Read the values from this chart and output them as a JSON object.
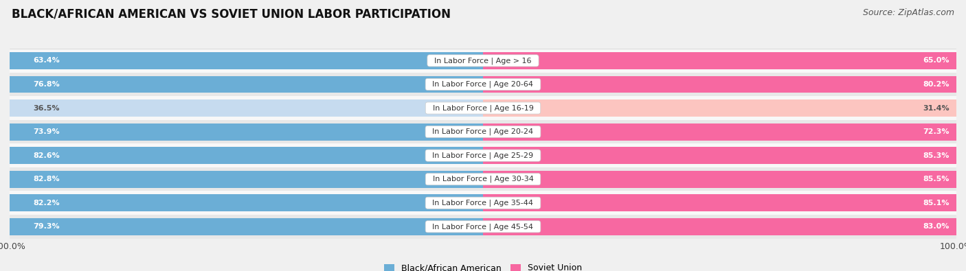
{
  "title": "BLACK/AFRICAN AMERICAN VS SOVIET UNION LABOR PARTICIPATION",
  "source": "Source: ZipAtlas.com",
  "categories": [
    "In Labor Force | Age > 16",
    "In Labor Force | Age 20-64",
    "In Labor Force | Age 16-19",
    "In Labor Force | Age 20-24",
    "In Labor Force | Age 25-29",
    "In Labor Force | Age 30-34",
    "In Labor Force | Age 35-44",
    "In Labor Force | Age 45-54"
  ],
  "left_values": [
    63.4,
    76.8,
    36.5,
    73.9,
    82.6,
    82.8,
    82.2,
    79.3
  ],
  "right_values": [
    65.0,
    80.2,
    31.4,
    72.3,
    85.3,
    85.5,
    85.1,
    83.0
  ],
  "left_label": "Black/African American",
  "right_label": "Soviet Union",
  "left_color_full": "#6baed6",
  "left_color_light": "#c6dbef",
  "right_color_full": "#f768a1",
  "right_color_light": "#fcc5c0",
  "bar_height": 0.72,
  "xlim": 100.0,
  "bg_color": "#f0f0f0",
  "row_bg_light": "#f8f8f8",
  "row_bg_dark": "#e8e8e8",
  "title_fontsize": 12,
  "source_fontsize": 9,
  "cat_label_fontsize": 8,
  "value_fontsize": 8,
  "legend_fontsize": 9
}
